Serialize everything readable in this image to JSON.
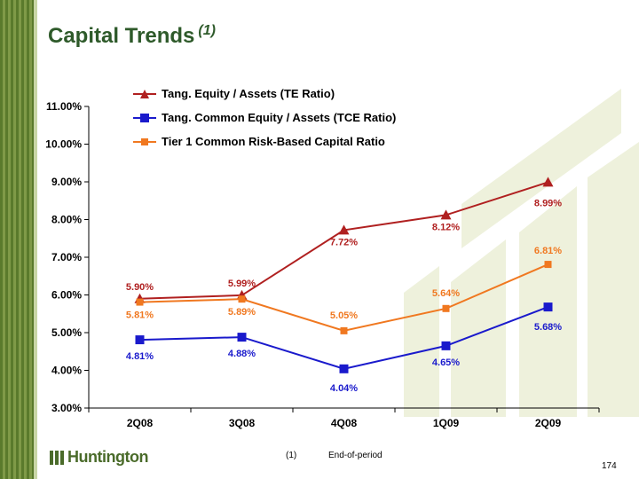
{
  "slide": {
    "title": "Capital Trends",
    "title_superscript": "(1)",
    "footnote_number": "(1)",
    "footnote_text": "End-of-period",
    "page_number": "174",
    "logo_text": "Huntington"
  },
  "colors": {
    "te_ratio": "#b02020",
    "tce_ratio": "#1a1acc",
    "tier1": "#f07820",
    "title": "#2e5a2a",
    "sidebar": "#5a7a2c"
  },
  "chart_data": {
    "type": "line",
    "title": "",
    "xlabel": "",
    "ylabel": "",
    "categories": [
      "2Q08",
      "3Q08",
      "4Q08",
      "1Q09",
      "2Q09"
    ],
    "ylim": [
      3.0,
      11.0
    ],
    "y_ticks": [
      "3.00%",
      "4.00%",
      "5.00%",
      "6.00%",
      "7.00%",
      "8.00%",
      "9.00%",
      "10.00%",
      "11.00%"
    ],
    "grid": false,
    "legend_position": "top-left",
    "series": [
      {
        "name": "Tang. Equity / Assets (TE Ratio)",
        "values": [
          5.9,
          5.99,
          7.72,
          8.12,
          8.99
        ],
        "labels": [
          "5.90%",
          "5.99%",
          "7.72%",
          "8.12%",
          "8.99%"
        ],
        "marker": "triangle",
        "color": "#b02020"
      },
      {
        "name": "Tang. Common Equity / Assets (TCE Ratio)",
        "values": [
          4.81,
          4.88,
          4.04,
          4.65,
          5.68
        ],
        "labels": [
          "4.81%",
          "4.88%",
          "4.04%",
          "4.65%",
          "5.68%"
        ],
        "marker": "square",
        "color": "#1a1acc"
      },
      {
        "name": "Tier 1 Common Risk-Based Capital Ratio",
        "values": [
          5.81,
          5.89,
          5.05,
          5.64,
          6.81
        ],
        "labels": [
          "5.81%",
          "5.89%",
          "5.05%",
          "5.64%",
          "6.81%"
        ],
        "marker": "square-small",
        "color": "#f07820"
      }
    ]
  }
}
